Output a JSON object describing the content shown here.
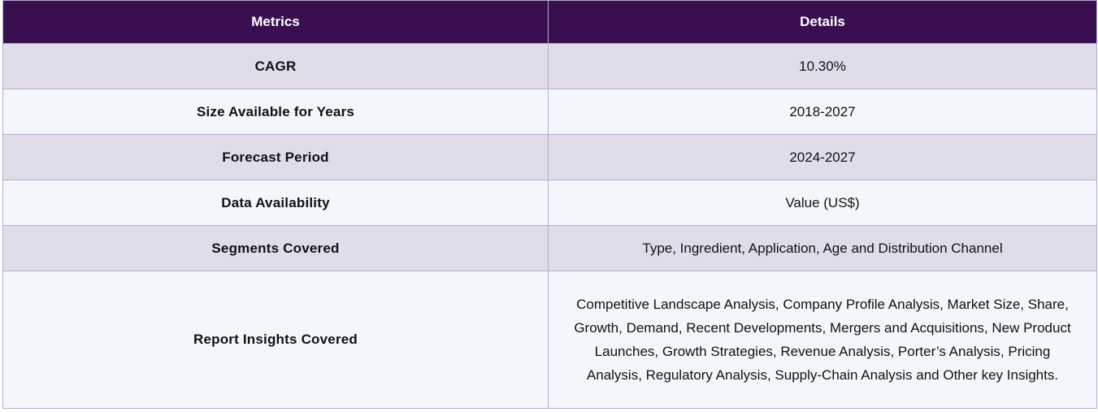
{
  "table": {
    "headers": [
      "Metrics",
      "Details"
    ],
    "rows": [
      {
        "metric": "CAGR",
        "detail": "10.30%"
      },
      {
        "metric": "Size Available for Years",
        "detail": "2018-2027"
      },
      {
        "metric": "Forecast Period",
        "detail": "2024-2027"
      },
      {
        "metric": "Data Availability",
        "detail": "Value (US$)"
      },
      {
        "metric": "Segments Covered",
        "detail": "Type, Ingredient, Application, Age and Distribution Channel"
      },
      {
        "metric": "Report Insights Covered",
        "detail": "Competitive Landscape Analysis, Company Profile Analysis, Market Size, Share, Growth, Demand, Recent Developments, Mergers and Acquisitions, New Product Launches, Growth Strategies, Revenue Analysis, Porter’s Analysis, Pricing Analysis, Regulatory Analysis, Supply-Chain Analysis and Other key Insights."
      }
    ]
  },
  "colors": {
    "header_bg": "#3a0f4f",
    "row_odd_bg": "#e1dcea",
    "row_even_bg": "#f3f7fb",
    "border": "#b3aed0"
  }
}
